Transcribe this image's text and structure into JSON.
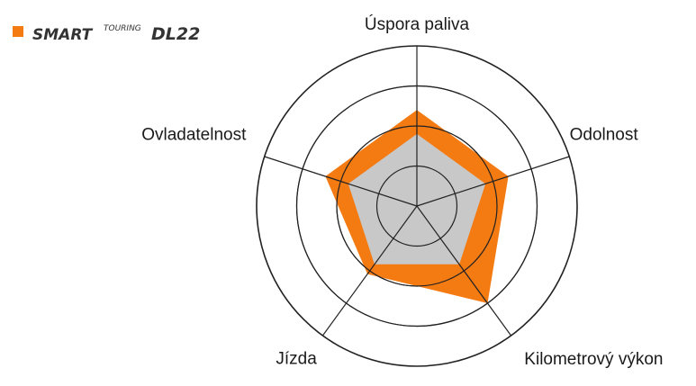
{
  "legend": {
    "brand_main_left": "SMART",
    "brand_superscript": "TOURING",
    "brand_main_right": "DL22",
    "swatch_color": "#f47a12"
  },
  "chart_data": {
    "type": "radar",
    "axes": [
      "Úspora paliva",
      "Odolnost",
      "Kilometrový výkon",
      "Jízda",
      "Ovladatelnost"
    ],
    "rlim": [
      0,
      4
    ],
    "rings": [
      1,
      2,
      3,
      4
    ],
    "grid": true,
    "series": [
      {
        "name": "SMARTTOURING DL22",
        "color": "#f47a12",
        "values": [
          2.4,
          2.4,
          3.0,
          2.1,
          2.4
        ]
      },
      {
        "name": "",
        "color": "#c8c8c8",
        "values": [
          1.8,
          1.8,
          1.8,
          1.8,
          1.8
        ]
      }
    ]
  }
}
